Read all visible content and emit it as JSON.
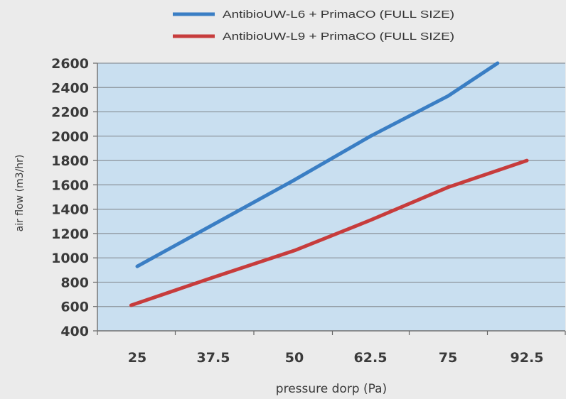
{
  "chart_data": {
    "type": "line",
    "title": "",
    "xlabel": "pressure dorp (Pa)",
    "ylabel": "air flow (m3/hr)",
    "categories": [
      "25",
      "37.5",
      "50",
      "62.5",
      "75",
      "92.5"
    ],
    "ylim": [
      400,
      2600
    ],
    "yticks": [
      400,
      600,
      800,
      1000,
      1200,
      1400,
      1600,
      1800,
      2000,
      2200,
      2400,
      2600
    ],
    "grid": true,
    "legend_position": "top",
    "plot_background": "#c9dff0",
    "series": [
      {
        "name": "AntibioUW-L6 + PrimaCO (FULL SIZE)",
        "color": "#3a7ec4",
        "points": [
          {
            "x": 25,
            "y": 930
          },
          {
            "x": 50,
            "y": 1640
          },
          {
            "x": 62.5,
            "y": 2000
          },
          {
            "x": 75,
            "y": 2330
          },
          {
            "x": 86,
            "y": 2600
          }
        ]
      },
      {
        "name": "AntibioUW-L9 + PrimaCO (FULL SIZE)",
        "color": "#c73c3c",
        "points": [
          {
            "x": 24,
            "y": 610
          },
          {
            "x": 37.5,
            "y": 840
          },
          {
            "x": 50,
            "y": 1060
          },
          {
            "x": 62.5,
            "y": 1310
          },
          {
            "x": 75,
            "y": 1580
          },
          {
            "x": 92.5,
            "y": 1800
          }
        ]
      }
    ]
  }
}
